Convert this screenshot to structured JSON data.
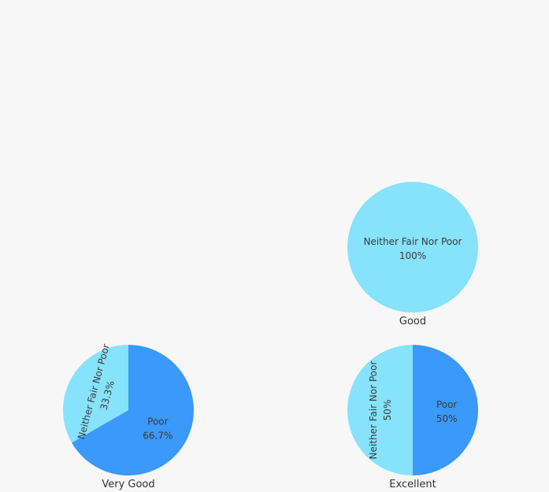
{
  "chart_data": {
    "type": "pie",
    "pies": [
      {
        "title": "Good",
        "slices": [
          {
            "name": "Neither Fair Nor Poor",
            "value": 100,
            "label": "100%",
            "color": "#87e2fb"
          }
        ]
      },
      {
        "title": "Very Good",
        "slices": [
          {
            "name": "Poor",
            "value": 66.7,
            "label": "66.7%",
            "color": "#3a99fa"
          },
          {
            "name": "Neither Fair Nor Poor",
            "value": 33.3,
            "label": "33.3%",
            "color": "#87e2fb"
          }
        ]
      },
      {
        "title": "Excellent",
        "slices": [
          {
            "name": "Poor",
            "value": 50,
            "label": "50%",
            "color": "#3a99fa"
          },
          {
            "name": "Neither Fair Nor Poor",
            "value": 50,
            "label": "50%",
            "color": "#87e2fb"
          }
        ]
      }
    ]
  }
}
